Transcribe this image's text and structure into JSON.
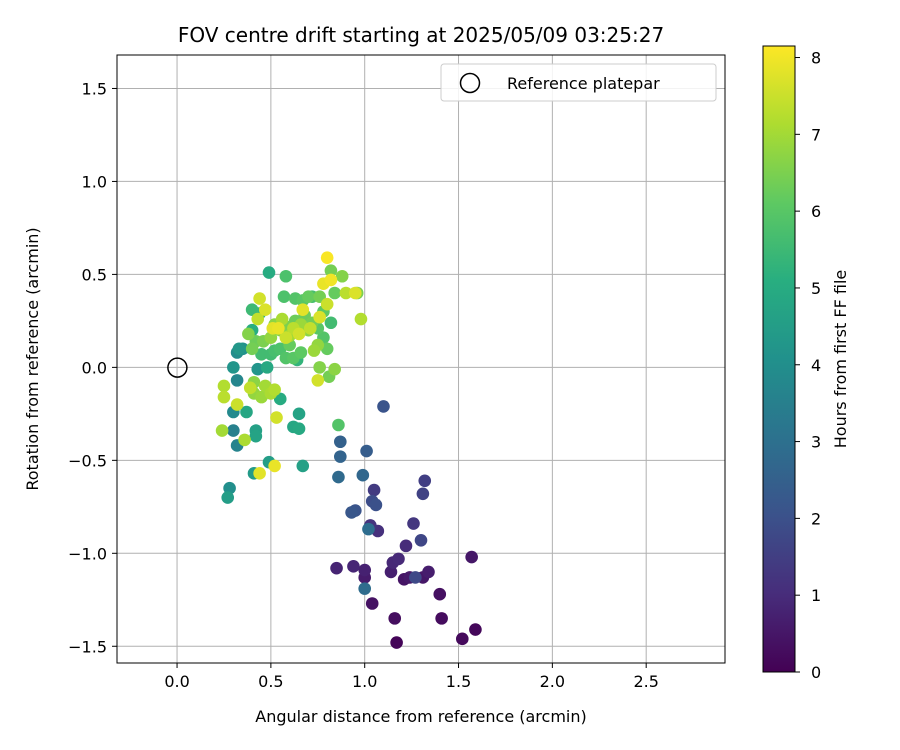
{
  "chart_data": {
    "type": "scatter",
    "title": "FOV centre drift starting at 2025/05/09 03:25:27",
    "xlabel": "Angular distance from reference (arcmin)",
    "ylabel": "Rotation from reference (arcmin)",
    "xlim": [
      -0.32,
      2.92
    ],
    "ylim": [
      -1.59,
      1.68
    ],
    "xticks": [
      0.0,
      0.5,
      1.0,
      1.5,
      2.0,
      2.5
    ],
    "xtick_labels": [
      "0.0",
      "0.5",
      "1.0",
      "1.5",
      "2.0",
      "2.5"
    ],
    "yticks": [
      -1.5,
      -1.0,
      -0.5,
      0.0,
      0.5,
      1.0,
      1.5
    ],
    "ytick_labels": [
      "−1.5",
      "−1.0",
      "−0.5",
      "0.0",
      "0.5",
      "1.0",
      "1.5"
    ],
    "grid": true,
    "legend": {
      "placement": "top-right",
      "entries": [
        "Reference platepar"
      ]
    },
    "reference_point": {
      "x": 0.0,
      "y": 0.0
    },
    "colorbar": {
      "label": "Hours from first FF file",
      "colormap": "viridis",
      "range": [
        0,
        8.15
      ],
      "ticks": [
        0,
        1,
        2,
        3,
        4,
        5,
        6,
        7,
        8
      ],
      "tick_labels": [
        "0",
        "1",
        "2",
        "3",
        "4",
        "5",
        "6",
        "7",
        "8"
      ]
    },
    "points": [
      [
        1.17,
        -1.48,
        0.1
      ],
      [
        1.52,
        -1.46,
        0.2
      ],
      [
        1.59,
        -1.41,
        0.15
      ],
      [
        1.41,
        -1.35,
        0.25
      ],
      [
        1.16,
        -1.35,
        0.3
      ],
      [
        1.04,
        -1.27,
        0.4
      ],
      [
        1.4,
        -1.22,
        0.35
      ],
      [
        1.31,
        -1.13,
        0.5
      ],
      [
        1.21,
        -1.14,
        0.45
      ],
      [
        1.24,
        -1.13,
        0.55
      ],
      [
        1.0,
        -1.13,
        0.6
      ],
      [
        1.34,
        -1.1,
        0.65
      ],
      [
        1.14,
        -1.1,
        0.7
      ],
      [
        1.0,
        -1.09,
        0.75
      ],
      [
        0.85,
        -1.08,
        0.8
      ],
      [
        0.94,
        -1.07,
        0.85
      ],
      [
        1.15,
        -1.05,
        0.9
      ],
      [
        1.57,
        -1.02,
        0.5
      ],
      [
        1.18,
        -1.03,
        0.95
      ],
      [
        1.22,
        -0.96,
        1.0
      ],
      [
        1.07,
        -0.88,
        1.1
      ],
      [
        1.03,
        -0.85,
        1.2
      ],
      [
        1.26,
        -0.84,
        1.3
      ],
      [
        1.05,
        -0.66,
        1.4
      ],
      [
        1.32,
        -0.61,
        1.5
      ],
      [
        1.31,
        -0.68,
        1.6
      ],
      [
        1.3,
        -0.93,
        1.7
      ],
      [
        1.27,
        -1.13,
        1.8
      ],
      [
        1.04,
        -0.72,
        1.9
      ],
      [
        1.06,
        -0.74,
        2.0
      ],
      [
        0.95,
        -0.77,
        2.1
      ],
      [
        0.93,
        -0.78,
        2.2
      ],
      [
        1.1,
        -0.21,
        2.1
      ],
      [
        1.01,
        -0.45,
        2.4
      ],
      [
        0.87,
        -0.4,
        2.5
      ],
      [
        0.87,
        -0.48,
        2.6
      ],
      [
        0.99,
        -0.58,
        2.7
      ],
      [
        0.86,
        -0.59,
        2.8
      ],
      [
        1.0,
        -1.19,
        2.85
      ],
      [
        1.02,
        -0.87,
        2.9
      ],
      [
        0.28,
        -0.65,
        4.0
      ],
      [
        0.27,
        -0.7,
        4.5
      ],
      [
        0.3,
        -0.34,
        3.5
      ],
      [
        0.32,
        -0.42,
        3.6
      ],
      [
        0.3,
        -0.24,
        3.8
      ],
      [
        0.32,
        -0.07,
        3.7
      ],
      [
        0.3,
        0.0,
        4.2
      ],
      [
        0.32,
        0.08,
        3.9
      ],
      [
        0.33,
        0.1,
        4.3
      ],
      [
        0.35,
        0.1,
        4.1
      ],
      [
        0.41,
        -0.57,
        4.4
      ],
      [
        0.49,
        -0.51,
        4.5
      ],
      [
        0.42,
        -0.34,
        4.6
      ],
      [
        0.42,
        -0.37,
        4.7
      ],
      [
        0.37,
        -0.24,
        4.8
      ],
      [
        0.43,
        -0.01,
        4.2
      ],
      [
        0.48,
        0.0,
        4.9
      ],
      [
        0.67,
        -0.53,
        4.6
      ],
      [
        0.65,
        -0.25,
        4.7
      ],
      [
        0.62,
        -0.32,
        4.8
      ],
      [
        0.65,
        -0.33,
        4.9
      ],
      [
        0.55,
        -0.17,
        5.0
      ],
      [
        0.49,
        0.51,
        5.0
      ],
      [
        0.58,
        0.49,
        5.8
      ],
      [
        0.86,
        -0.31,
        5.9
      ],
      [
        0.4,
        0.2,
        5.1
      ],
      [
        0.44,
        0.29,
        5.4
      ],
      [
        0.4,
        0.31,
        5.5
      ],
      [
        0.45,
        0.07,
        5.6
      ],
      [
        0.5,
        0.07,
        5.6
      ],
      [
        0.52,
        0.09,
        5.7
      ],
      [
        0.55,
        0.1,
        5.8
      ],
      [
        0.58,
        0.05,
        5.9
      ],
      [
        0.62,
        0.05,
        6.0
      ],
      [
        0.64,
        0.04,
        5.3
      ],
      [
        0.66,
        0.08,
        6.1
      ],
      [
        0.6,
        0.12,
        6.2
      ],
      [
        0.57,
        0.38,
        5.8
      ],
      [
        0.63,
        0.37,
        5.9
      ],
      [
        0.67,
        0.36,
        6.0
      ],
      [
        0.72,
        0.38,
        5.7
      ],
      [
        0.7,
        0.38,
        6.2
      ],
      [
        0.68,
        0.28,
        6.3
      ],
      [
        0.72,
        0.24,
        6.4
      ],
      [
        0.75,
        0.21,
        6.0
      ],
      [
        0.78,
        0.16,
        5.9
      ],
      [
        0.8,
        0.1,
        6.2
      ],
      [
        0.82,
        0.24,
        5.6
      ],
      [
        0.78,
        0.3,
        6.1
      ],
      [
        0.76,
        0.38,
        6.4
      ],
      [
        0.82,
        0.52,
        6.4
      ],
      [
        0.84,
        0.4,
        6.2
      ],
      [
        0.88,
        0.49,
        6.6
      ],
      [
        0.96,
        0.4,
        6.5
      ],
      [
        0.81,
        -0.05,
        6.4
      ],
      [
        0.84,
        -0.01,
        6.7
      ],
      [
        0.76,
        0.0,
        6.6
      ],
      [
        0.73,
        0.09,
        6.9
      ],
      [
        0.75,
        0.12,
        6.8
      ],
      [
        0.7,
        0.2,
        6.7
      ],
      [
        0.66,
        0.23,
        6.9
      ],
      [
        0.63,
        0.25,
        6.3
      ],
      [
        0.58,
        0.22,
        6.5
      ],
      [
        0.55,
        0.2,
        6.6
      ],
      [
        0.52,
        0.23,
        6.7
      ],
      [
        0.5,
        0.16,
        6.8
      ],
      [
        0.46,
        0.14,
        6.5
      ],
      [
        0.42,
        0.14,
        6.3
      ],
      [
        0.4,
        0.1,
        6.4
      ],
      [
        0.38,
        0.18,
        6.6
      ],
      [
        0.41,
        -0.08,
        6.7
      ],
      [
        0.41,
        -0.14,
        6.8
      ],
      [
        0.45,
        -0.16,
        6.9
      ],
      [
        0.47,
        -0.1,
        7.0
      ],
      [
        0.5,
        -0.14,
        7.1
      ],
      [
        0.52,
        -0.12,
        7.2
      ],
      [
        0.25,
        -0.1,
        7.2
      ],
      [
        0.25,
        -0.16,
        7.3
      ],
      [
        0.24,
        -0.34,
        7.0
      ],
      [
        0.32,
        -0.2,
        7.5
      ],
      [
        0.36,
        -0.39,
        7.1
      ],
      [
        0.44,
        -0.57,
        7.8
      ],
      [
        0.52,
        -0.53,
        7.9
      ],
      [
        0.53,
        -0.27,
        7.6
      ],
      [
        0.39,
        -0.11,
        7.4
      ],
      [
        0.43,
        0.26,
        7.4
      ],
      [
        0.44,
        0.37,
        7.6
      ],
      [
        0.47,
        0.31,
        7.7
      ],
      [
        0.51,
        0.21,
        7.8
      ],
      [
        0.54,
        0.21,
        7.9
      ],
      [
        0.58,
        0.16,
        7.5
      ],
      [
        0.62,
        0.21,
        7.3
      ],
      [
        0.67,
        0.31,
        7.8
      ],
      [
        0.65,
        0.18,
        7.6
      ],
      [
        0.71,
        0.21,
        7.4
      ],
      [
        0.76,
        0.27,
        7.7
      ],
      [
        0.8,
        0.34,
        7.5
      ],
      [
        0.78,
        0.45,
        7.9
      ],
      [
        0.82,
        0.47,
        8.0
      ],
      [
        0.8,
        0.59,
        8.1
      ],
      [
        0.9,
        0.4,
        7.3
      ],
      [
        0.95,
        0.4,
        7.7
      ],
      [
        0.98,
        0.26,
        7.2
      ],
      [
        0.75,
        -0.07,
        7.6
      ],
      [
        0.6,
        0.17,
        7.0
      ],
      [
        0.56,
        0.26,
        7.1
      ]
    ]
  }
}
